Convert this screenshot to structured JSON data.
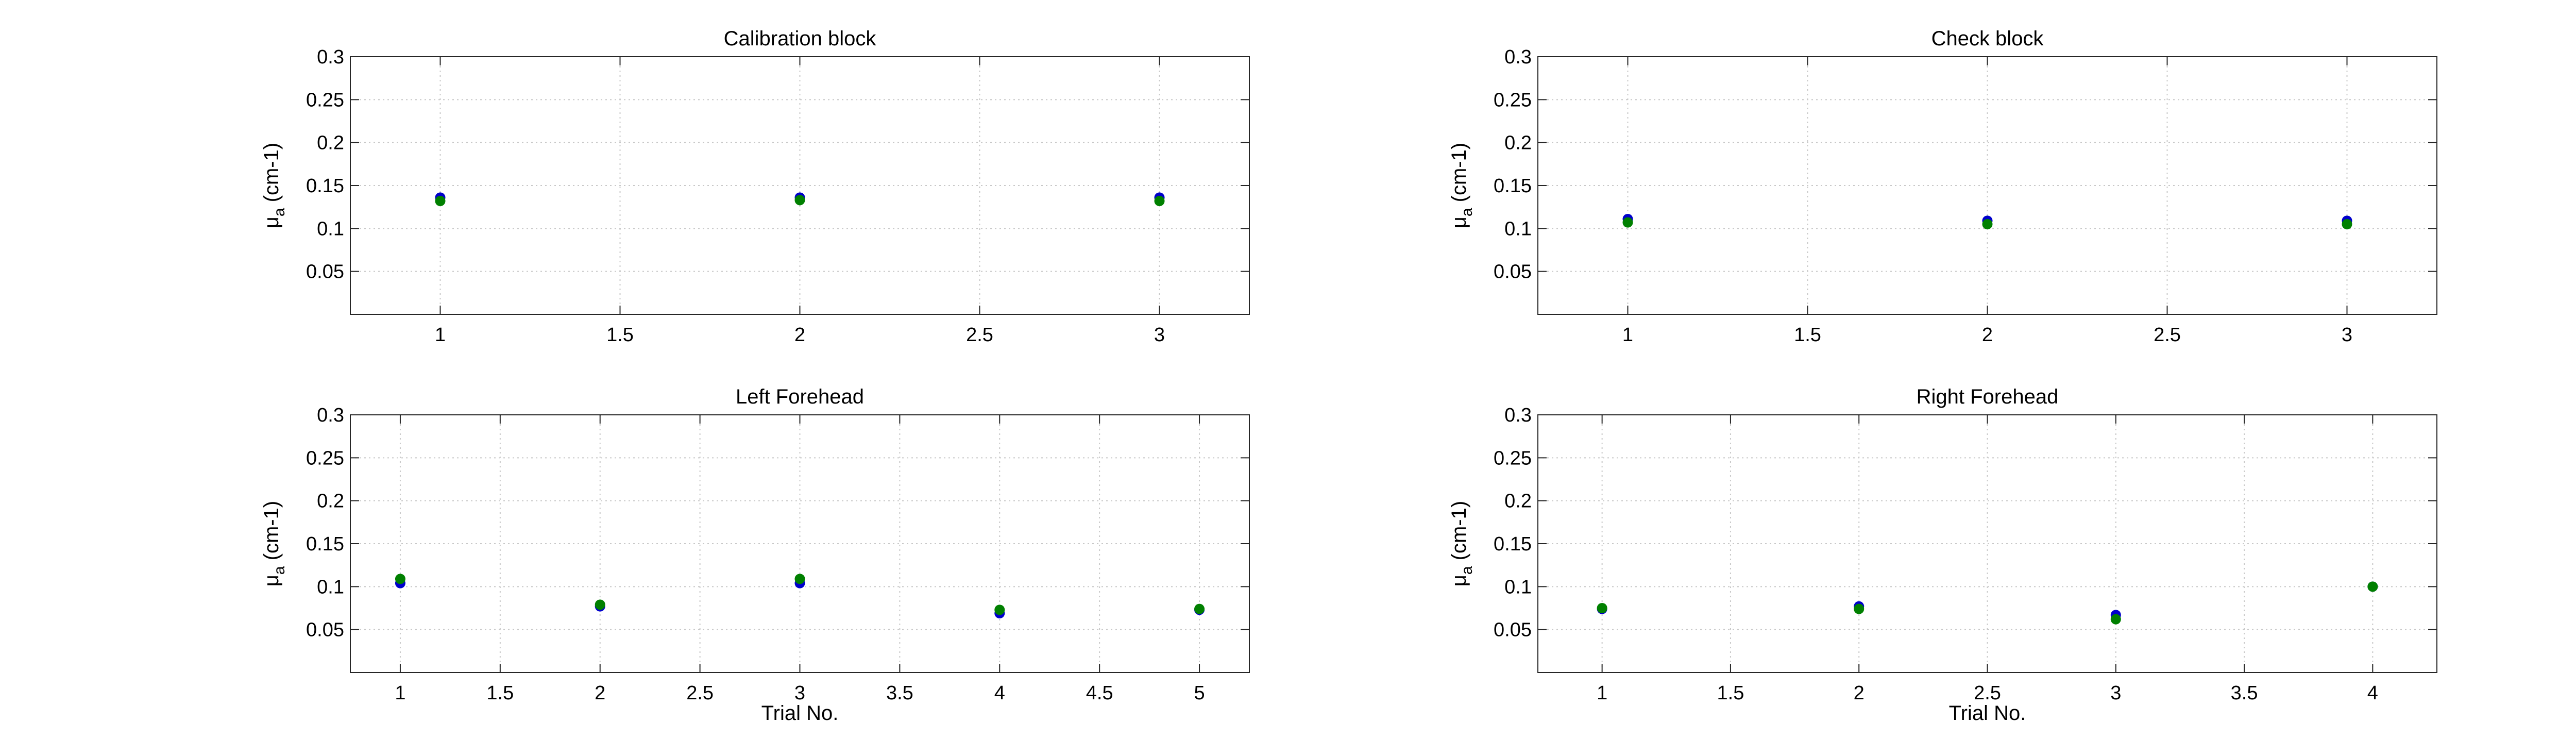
{
  "chart_data": [
    {
      "type": "scatter",
      "title": "Calibration block",
      "xlabel": "",
      "ylabel_main": "μ",
      "ylabel_sub": "a",
      "ylabel_unit": "(cm-1)",
      "xlim": [
        0.75,
        3.25
      ],
      "ylim": [
        0,
        0.3
      ],
      "xticks": [
        1,
        1.5,
        2,
        2.5,
        3
      ],
      "xtick_labels": [
        "1",
        "1.5",
        "2",
        "2.5",
        "3"
      ],
      "yticks": [
        0.05,
        0.1,
        0.15,
        0.2,
        0.25,
        0.3
      ],
      "ytick_labels": [
        "0.05",
        "0.1",
        "0.15",
        "0.2",
        "0.25",
        "0.3"
      ],
      "grid": true,
      "series": [
        {
          "name": "series-blue",
          "color": "#0000cc",
          "x": [
            1,
            2,
            3
          ],
          "y": [
            0.136,
            0.136,
            0.136
          ]
        },
        {
          "name": "series-green",
          "color": "#008000",
          "x": [
            1,
            2,
            3
          ],
          "y": [
            0.132,
            0.133,
            0.132
          ]
        }
      ]
    },
    {
      "type": "scatter",
      "title": "Check block",
      "xlabel": "",
      "ylabel_main": "μ",
      "ylabel_sub": "a",
      "ylabel_unit": "(cm-1)",
      "xlim": [
        0.75,
        3.25
      ],
      "ylim": [
        0,
        0.3
      ],
      "xticks": [
        1,
        1.5,
        2,
        2.5,
        3
      ],
      "xtick_labels": [
        "1",
        "1.5",
        "2",
        "2.5",
        "3"
      ],
      "yticks": [
        0.05,
        0.1,
        0.15,
        0.2,
        0.25,
        0.3
      ],
      "ytick_labels": [
        "0.05",
        "0.1",
        "0.15",
        "0.2",
        "0.25",
        "0.3"
      ],
      "grid": true,
      "series": [
        {
          "name": "series-blue",
          "color": "#0000cc",
          "x": [
            1,
            2,
            3
          ],
          "y": [
            0.111,
            0.109,
            0.109
          ]
        },
        {
          "name": "series-green",
          "color": "#008000",
          "x": [
            1,
            2,
            3
          ],
          "y": [
            0.107,
            0.105,
            0.105
          ]
        }
      ]
    },
    {
      "type": "scatter",
      "title": "Left Forehead",
      "xlabel": "Trial No.",
      "ylabel_main": "μ",
      "ylabel_sub": "a",
      "ylabel_unit": "(cm-1)",
      "xlim": [
        0.75,
        5.25
      ],
      "ylim": [
        0,
        0.3
      ],
      "xticks": [
        1,
        1.5,
        2,
        2.5,
        3,
        3.5,
        4,
        4.5,
        5
      ],
      "xtick_labels": [
        "1",
        "1.5",
        "2",
        "2.5",
        "3",
        "3.5",
        "4",
        "4.5",
        "5"
      ],
      "yticks": [
        0.05,
        0.1,
        0.15,
        0.2,
        0.25,
        0.3
      ],
      "ytick_labels": [
        "0.05",
        "0.1",
        "0.15",
        "0.2",
        "0.25",
        "0.3"
      ],
      "grid": true,
      "series": [
        {
          "name": "series-blue",
          "color": "#0000cc",
          "x": [
            1,
            2,
            3,
            4,
            5
          ],
          "y": [
            0.104,
            0.077,
            0.104,
            0.069,
            0.073
          ]
        },
        {
          "name": "series-green",
          "color": "#008000",
          "x": [
            1,
            2,
            3,
            4,
            5
          ],
          "y": [
            0.109,
            0.079,
            0.109,
            0.073,
            0.074
          ]
        }
      ]
    },
    {
      "type": "scatter",
      "title": "Right Forehead",
      "xlabel": "Trial No.",
      "ylabel_main": "μ",
      "ylabel_sub": "a",
      "ylabel_unit": "(cm-1)",
      "xlim": [
        0.75,
        4.25
      ],
      "ylim": [
        0,
        0.3
      ],
      "xticks": [
        1,
        1.5,
        2,
        2.5,
        3,
        3.5,
        4
      ],
      "xtick_labels": [
        "1",
        "1.5",
        "2",
        "2.5",
        "3",
        "3.5",
        "4"
      ],
      "yticks": [
        0.05,
        0.1,
        0.15,
        0.2,
        0.25,
        0.3
      ],
      "ytick_labels": [
        "0.05",
        "0.1",
        "0.15",
        "0.2",
        "0.25",
        "0.3"
      ],
      "grid": true,
      "series": [
        {
          "name": "series-blue",
          "color": "#0000cc",
          "x": [
            1,
            2,
            3,
            4
          ],
          "y": [
            0.074,
            0.077,
            0.067,
            0.1
          ]
        },
        {
          "name": "series-green",
          "color": "#008000",
          "x": [
            1,
            2,
            3,
            4
          ],
          "y": [
            0.075,
            0.074,
            0.062,
            0.1
          ]
        }
      ]
    }
  ]
}
